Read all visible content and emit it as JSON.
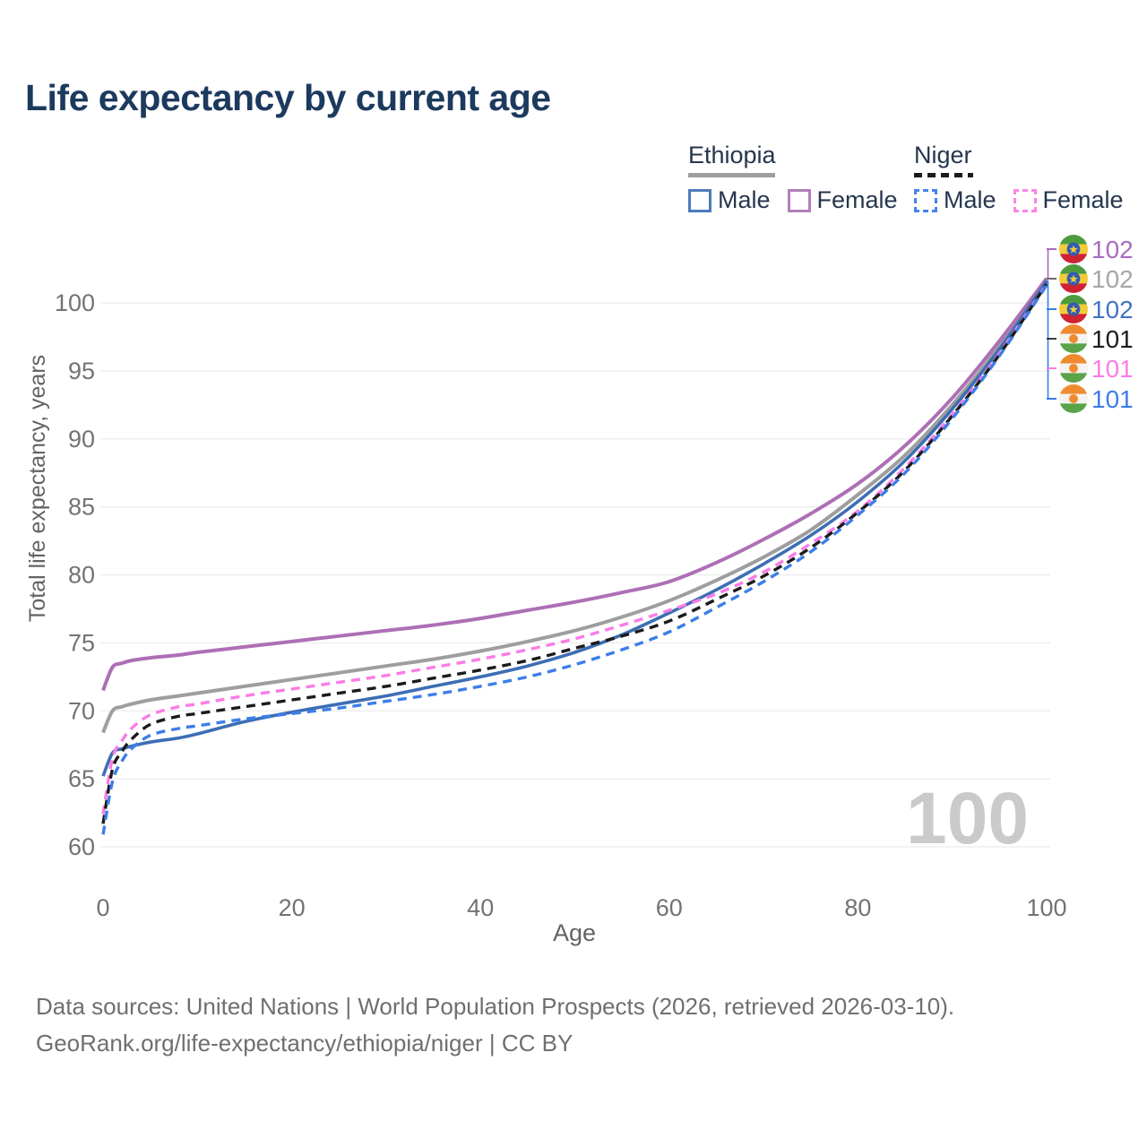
{
  "title": "Life expectancy by current age",
  "legend": {
    "groups": [
      {
        "label": "Ethiopia",
        "line_style": "solid",
        "underline_color": "#9e9e9e",
        "items": [
          {
            "label": "Male",
            "color": "#4f7cba",
            "dashed": false
          },
          {
            "label": "Female",
            "color": "#b27fb7",
            "dashed": false
          }
        ]
      },
      {
        "label": "Niger",
        "line_style": "dashed",
        "underline_color": "#1b1b1b",
        "items": [
          {
            "label": "Male",
            "color": "#4583ea",
            "dashed": true
          },
          {
            "label": "Female",
            "color": "#fb85e6",
            "dashed": true
          }
        ]
      }
    ]
  },
  "watermark": "100",
  "end_labels": [
    {
      "icon": "ethiopia-flag-icon",
      "flag": "ethiopia",
      "value": "102",
      "color": "#a76cc0"
    },
    {
      "icon": "ethiopia-flag-icon",
      "flag": "ethiopia",
      "value": "102",
      "color": "#a6a6a6"
    },
    {
      "icon": "ethiopia-flag-icon",
      "flag": "ethiopia",
      "value": "102",
      "color": "#4273c2"
    },
    {
      "icon": "niger-flag-icon",
      "flag": "niger",
      "value": "101",
      "color": "#1b1b1b"
    },
    {
      "icon": "niger-flag-icon",
      "flag": "niger",
      "value": "101",
      "color": "#fb7ce6"
    },
    {
      "icon": "niger-flag-icon",
      "flag": "niger",
      "value": "101",
      "color": "#3b7de9"
    }
  ],
  "footer": {
    "line1": "Data sources: United Nations | World Population Prospects (2026, retrieved 2026-03-10).",
    "line2": "GeoRank.org/life-expectancy/ethiopia/niger | CC BY"
  },
  "chart_data": {
    "type": "line",
    "title": "Life expectancy by current age",
    "xlabel": "Age",
    "ylabel": "Total life expectancy, years",
    "xlim": [
      0,
      100
    ],
    "ylim": [
      60,
      102
    ],
    "xticks": [
      0,
      20,
      40,
      60,
      80,
      100
    ],
    "yticks": [
      60,
      65,
      70,
      75,
      80,
      85,
      90,
      95,
      100
    ],
    "grid": true,
    "legend_position": "top-right",
    "x": [
      0,
      1,
      2,
      3,
      5,
      8,
      10,
      15,
      20,
      25,
      30,
      35,
      40,
      45,
      50,
      55,
      60,
      65,
      70,
      75,
      80,
      85,
      90,
      95,
      100
    ],
    "series": [
      {
        "name": "Ethiopia Both sexes",
        "color": "#9e9e9e",
        "dash": "solid",
        "width": 4,
        "values": [
          68.4,
          70.0,
          70.3,
          70.5,
          70.8,
          71.1,
          71.3,
          71.8,
          72.3,
          72.8,
          73.3,
          73.8,
          74.4,
          75.1,
          75.9,
          76.9,
          78.1,
          79.6,
          81.3,
          83.3,
          85.9,
          88.8,
          92.5,
          96.8,
          101.7
        ],
        "end_label": "102"
      },
      {
        "name": "Ethiopia Female",
        "color": "#ad6fb5",
        "dash": "solid",
        "width": 4,
        "values": [
          71.5,
          73.2,
          73.5,
          73.7,
          73.9,
          74.1,
          74.3,
          74.7,
          75.1,
          75.5,
          75.9,
          76.3,
          76.8,
          77.4,
          78.0,
          78.7,
          79.5,
          80.9,
          82.6,
          84.5,
          86.7,
          89.5,
          93.0,
          97.2,
          101.8
        ],
        "end_label": "102"
      },
      {
        "name": "Ethiopia Male",
        "color": "#3d6eb4",
        "dash": "solid",
        "width": 3.6,
        "values": [
          65.2,
          66.9,
          67.2,
          67.4,
          67.7,
          68.0,
          68.3,
          69.2,
          69.9,
          70.5,
          71.1,
          71.8,
          72.5,
          73.3,
          74.3,
          75.6,
          77.2,
          78.9,
          80.8,
          82.9,
          85.4,
          88.4,
          92.2,
          96.6,
          101.6
        ],
        "end_label": "102"
      },
      {
        "name": "Niger Female",
        "color": "#fa7ce6",
        "dash": "dashed",
        "width": 3.4,
        "values": [
          62.4,
          66.5,
          67.8,
          68.7,
          69.7,
          70.3,
          70.5,
          71.1,
          71.6,
          72.1,
          72.6,
          73.2,
          73.8,
          74.5,
          75.3,
          76.3,
          77.4,
          78.6,
          80.2,
          82.3,
          84.7,
          87.9,
          91.8,
          96.3,
          101.4
        ],
        "end_label": "101"
      },
      {
        "name": "Niger Both sexes",
        "color": "#1b1b1b",
        "dash": "dashed",
        "width": 3.4,
        "values": [
          61.7,
          65.7,
          67.0,
          67.9,
          69.0,
          69.6,
          69.8,
          70.3,
          70.8,
          71.3,
          71.8,
          72.4,
          73.0,
          73.7,
          74.6,
          75.5,
          76.6,
          78.2,
          79.9,
          82.0,
          84.6,
          87.7,
          91.7,
          96.2,
          101.4
        ],
        "end_label": "101"
      },
      {
        "name": "Niger Male",
        "color": "#3c7ee8",
        "dash": "dashed",
        "width": 3.4,
        "values": [
          60.9,
          64.8,
          66.3,
          67.2,
          68.2,
          68.7,
          68.9,
          69.4,
          69.8,
          70.2,
          70.7,
          71.2,
          71.8,
          72.5,
          73.4,
          74.5,
          75.8,
          77.6,
          79.5,
          81.7,
          84.4,
          87.5,
          91.5,
          96.1,
          101.3
        ],
        "end_label": "101"
      }
    ]
  }
}
